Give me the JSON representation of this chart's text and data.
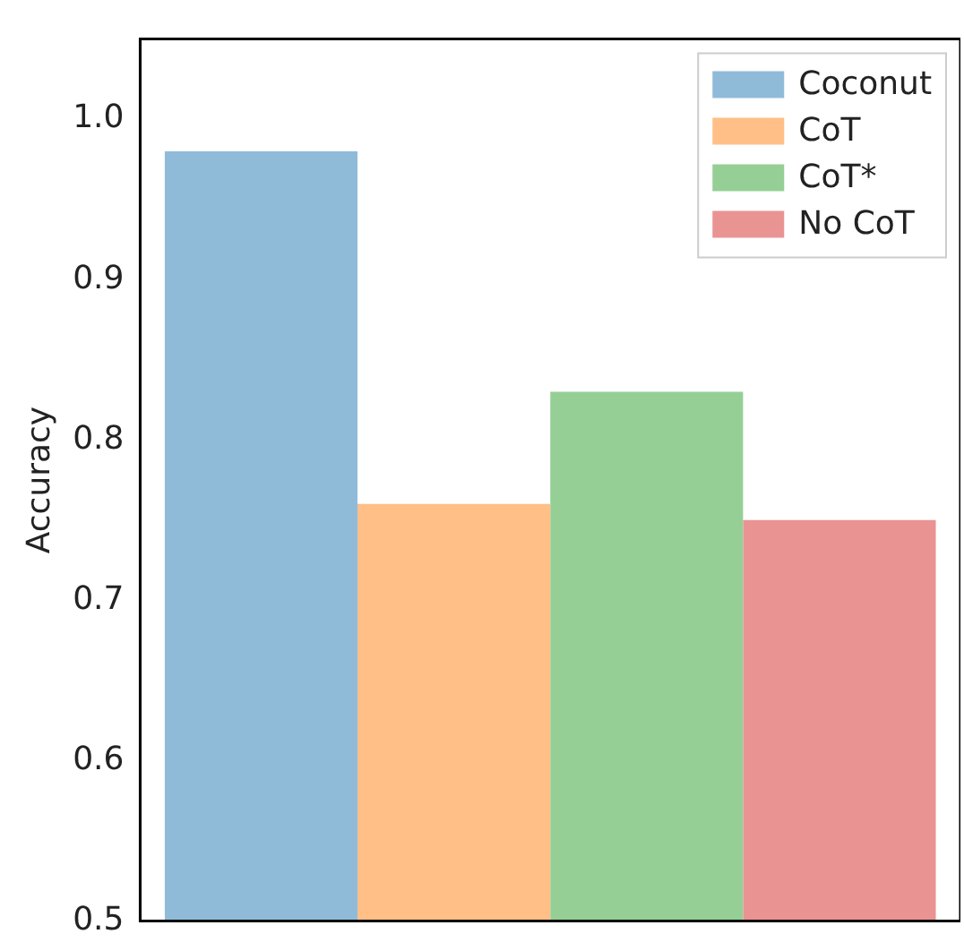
{
  "chart_data": {
    "type": "bar",
    "ylabel": "Accuracy",
    "categories": [
      null
    ],
    "series": [
      {
        "name": "Coconut",
        "color": "#8fbbd9",
        "values": [
          0.98
        ]
      },
      {
        "name": "CoT",
        "color": "#ffbf86",
        "values": [
          0.76
        ]
      },
      {
        "name": "CoT*",
        "color": "#95cf95",
        "values": [
          0.83
        ]
      },
      {
        "name": "No CoT",
        "color": "#ea9393",
        "values": [
          0.75
        ]
      }
    ],
    "ylim": [
      0.5,
      1.05
    ],
    "yticks": [
      0.5,
      0.6,
      0.7,
      0.8,
      0.9,
      {
        "value": 1,
        "label": "1.0"
      }
    ],
    "grid": false,
    "legend": "top right"
  }
}
